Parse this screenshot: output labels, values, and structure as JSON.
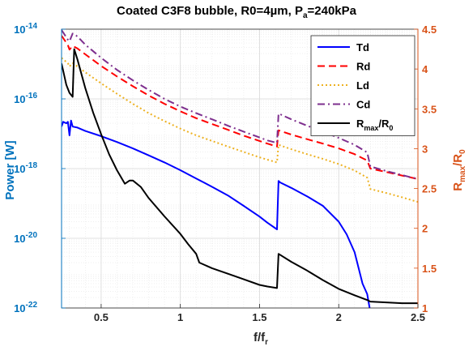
{
  "chart_data": {
    "type": "line",
    "title": "Coated C3F8 bubble, R0=4µm, P",
    "title_sub": "a",
    "title_tail": "=240kPa",
    "xlabel": "f/f",
    "xlabel_sub": "r",
    "ylabel_left": "Power [W]",
    "ylabel_right_main": "R",
    "ylabel_right_sub1": "max",
    "ylabel_right_mid": "/R",
    "ylabel_right_sub2": "0",
    "xlim": [
      0.25,
      2.5
    ],
    "ylim_left": [
      1e-22,
      1e-14
    ],
    "ylim_right": [
      1,
      4.5
    ],
    "x_ticks": [
      {
        "value": 0.5,
        "label": "0.5"
      },
      {
        "value": 1,
        "label": "1"
      },
      {
        "value": 1.5,
        "label": "1.5"
      },
      {
        "value": 2,
        "label": "2"
      },
      {
        "value": 2.5,
        "label": "2.5"
      }
    ],
    "left_ticks": [
      {
        "exp": -22,
        "base": "10",
        "sup": "-22"
      },
      {
        "exp": -20,
        "base": "10",
        "sup": "-20"
      },
      {
        "exp": -18,
        "base": "10",
        "sup": "-18"
      },
      {
        "exp": -16,
        "base": "10",
        "sup": "-16"
      },
      {
        "exp": -14,
        "base": "10",
        "sup": "-14"
      }
    ],
    "right_ticks": [
      {
        "value": 1,
        "label": "1"
      },
      {
        "value": 1.5,
        "label": "1.5"
      },
      {
        "value": 2,
        "label": "2"
      },
      {
        "value": 2.5,
        "label": "2.5"
      },
      {
        "value": 3,
        "label": "3"
      },
      {
        "value": 3.5,
        "label": "3.5"
      },
      {
        "value": 4,
        "label": "4"
      },
      {
        "value": 4.5,
        "label": "4.5"
      }
    ],
    "grid": true,
    "legend_position": "top-right",
    "colors": {
      "left_axis": "#0072BD",
      "right_axis": "#D95319",
      "td": "#0000FF",
      "rd": "#FF0000",
      "ld": "#EDB120",
      "cd": "#7E2F8E",
      "ratio": "#000000"
    },
    "series": [
      {
        "key": "td",
        "name": "Td",
        "axis": "left",
        "dash": "solid",
        "x": [
          0.25,
          0.26,
          0.28,
          0.29,
          0.3,
          0.31,
          0.32,
          0.35,
          0.4,
          0.5,
          0.6,
          0.7,
          0.8,
          0.9,
          1.0,
          1.1,
          1.2,
          1.3,
          1.4,
          1.5,
          1.55,
          1.61,
          1.62,
          1.63,
          1.7,
          1.8,
          1.9,
          2.0,
          2.05,
          2.1,
          2.15,
          2.18,
          2.2,
          2.3,
          2.4,
          2.5
        ],
        "y": [
          1.6e-17,
          2.2e-17,
          2e-17,
          2.2e-17,
          9e-18,
          2.4e-17,
          1.6e-17,
          1.5e-17,
          1.2e-17,
          8.5e-18,
          5.8e-18,
          3.8e-18,
          2.4e-18,
          1.5e-18,
          9e-19,
          5.2e-19,
          3e-19,
          1.7e-19,
          8.5e-20,
          4.2e-20,
          2.8e-20,
          1.8e-20,
          4.4e-19,
          4e-19,
          2.8e-19,
          1.6e-19,
          8.5e-20,
          3e-20,
          1.3e-20,
          4e-21,
          5e-22,
          2.5e-22,
          7.5e-23,
          3.8e-23,
          2.4e-23,
          1.6e-23
        ]
      },
      {
        "key": "rd",
        "name": "Rd",
        "axis": "left",
        "dash": "dashed",
        "x": [
          0.25,
          0.29,
          0.3,
          0.32,
          0.35,
          0.4,
          0.5,
          0.6,
          0.7,
          0.8,
          0.9,
          1.0,
          1.1,
          1.2,
          1.3,
          1.4,
          1.5,
          1.55,
          1.61,
          1.62,
          1.7,
          1.8,
          1.9,
          2.0,
          2.1,
          2.18,
          2.2,
          2.3,
          2.4,
          2.5
        ],
        "y": [
          6.5e-15,
          3.5e-15,
          2.6e-15,
          3.3e-15,
          2.8e-15,
          1.9e-15,
          8.8e-16,
          4.4e-16,
          2.3e-16,
          1.25e-16,
          7.2e-17,
          4.4e-17,
          2.8e-17,
          1.9e-17,
          1.3e-17,
          8.8e-18,
          6.2e-18,
          5.2e-18,
          4.3e-18,
          1.25e-17,
          9.5e-18,
          7e-18,
          5.2e-18,
          3.8e-18,
          2.6e-18,
          1.7e-18,
          1e-18,
          8e-19,
          6.3e-19,
          5e-19
        ]
      },
      {
        "key": "ld",
        "name": "Ld",
        "axis": "left",
        "dash": "dotted",
        "x": [
          0.25,
          0.29,
          0.3,
          0.32,
          0.35,
          0.4,
          0.5,
          0.6,
          0.7,
          0.8,
          0.9,
          1.0,
          1.1,
          1.2,
          1.3,
          1.4,
          1.5,
          1.55,
          1.61,
          1.62,
          1.7,
          1.8,
          1.9,
          2.0,
          2.1,
          2.18,
          2.2,
          2.3,
          2.4,
          2.5
        ],
        "y": [
          1.5e-15,
          1.05e-15,
          8.5e-16,
          1.05e-15,
          8.5e-16,
          5.8e-16,
          2.8e-16,
          1.4e-16,
          7.2e-17,
          3.9e-17,
          2.3e-17,
          1.4e-17,
          9e-18,
          6.2e-18,
          4.3e-18,
          3e-18,
          2.1e-18,
          1.8e-18,
          1.5e-18,
          4.8e-18,
          3.6e-18,
          2.6e-18,
          1.9e-18,
          1.35e-18,
          8.8e-19,
          5.5e-19,
          2.6e-19,
          2e-19,
          1.5e-19,
          1.1e-19
        ]
      },
      {
        "key": "cd",
        "name": "Cd",
        "axis": "left",
        "dash": "dashdot",
        "x": [
          0.25,
          0.29,
          0.3,
          0.32,
          0.35,
          0.4,
          0.5,
          0.6,
          0.7,
          0.8,
          0.9,
          1.0,
          1.1,
          1.2,
          1.3,
          1.4,
          1.5,
          1.55,
          1.61,
          1.62,
          1.7,
          1.8,
          1.9,
          2.0,
          2.1,
          2.18,
          2.2,
          2.3,
          2.4,
          2.5
        ],
        "y": [
          9.5e-15,
          5e-15,
          4.5e-15,
          7.5e-15,
          6.2e-15,
          3.6e-15,
          1.5e-15,
          6.8e-16,
          3.4e-16,
          1.8e-16,
          1e-16,
          6e-17,
          3.9e-17,
          2.6e-17,
          1.7e-17,
          1.15e-17,
          7.8e-18,
          6.4e-18,
          5.5e-18,
          3.8e-17,
          2.6e-17,
          1.7e-17,
          1.15e-17,
          7.6e-18,
          4.8e-18,
          2.9e-18,
          1.15e-18,
          8.5e-19,
          6.5e-19,
          5e-19
        ]
      },
      {
        "key": "ratio",
        "name_main": "R",
        "name_sub1": "max",
        "name_mid": "/R",
        "name_sub2": "0",
        "axis": "right",
        "dash": "solid",
        "x": [
          0.25,
          0.28,
          0.3,
          0.32,
          0.33,
          0.35,
          0.4,
          0.45,
          0.5,
          0.55,
          0.6,
          0.65,
          0.68,
          0.7,
          0.75,
          0.8,
          0.9,
          1.0,
          1.05,
          1.1,
          1.12,
          1.2,
          1.3,
          1.4,
          1.5,
          1.55,
          1.61,
          1.62,
          1.7,
          1.8,
          1.9,
          2.0,
          2.1,
          2.18,
          2.2,
          2.3,
          2.4,
          2.5
        ],
        "y": [
          4.07,
          3.8,
          3.7,
          3.65,
          4.25,
          4.12,
          3.76,
          3.45,
          3.18,
          2.93,
          2.73,
          2.56,
          2.6,
          2.6,
          2.52,
          2.38,
          2.15,
          1.93,
          1.8,
          1.68,
          1.57,
          1.5,
          1.43,
          1.36,
          1.29,
          1.27,
          1.25,
          1.68,
          1.58,
          1.47,
          1.35,
          1.24,
          1.16,
          1.1,
          1.08,
          1.07,
          1.06,
          1.06
        ]
      }
    ]
  }
}
